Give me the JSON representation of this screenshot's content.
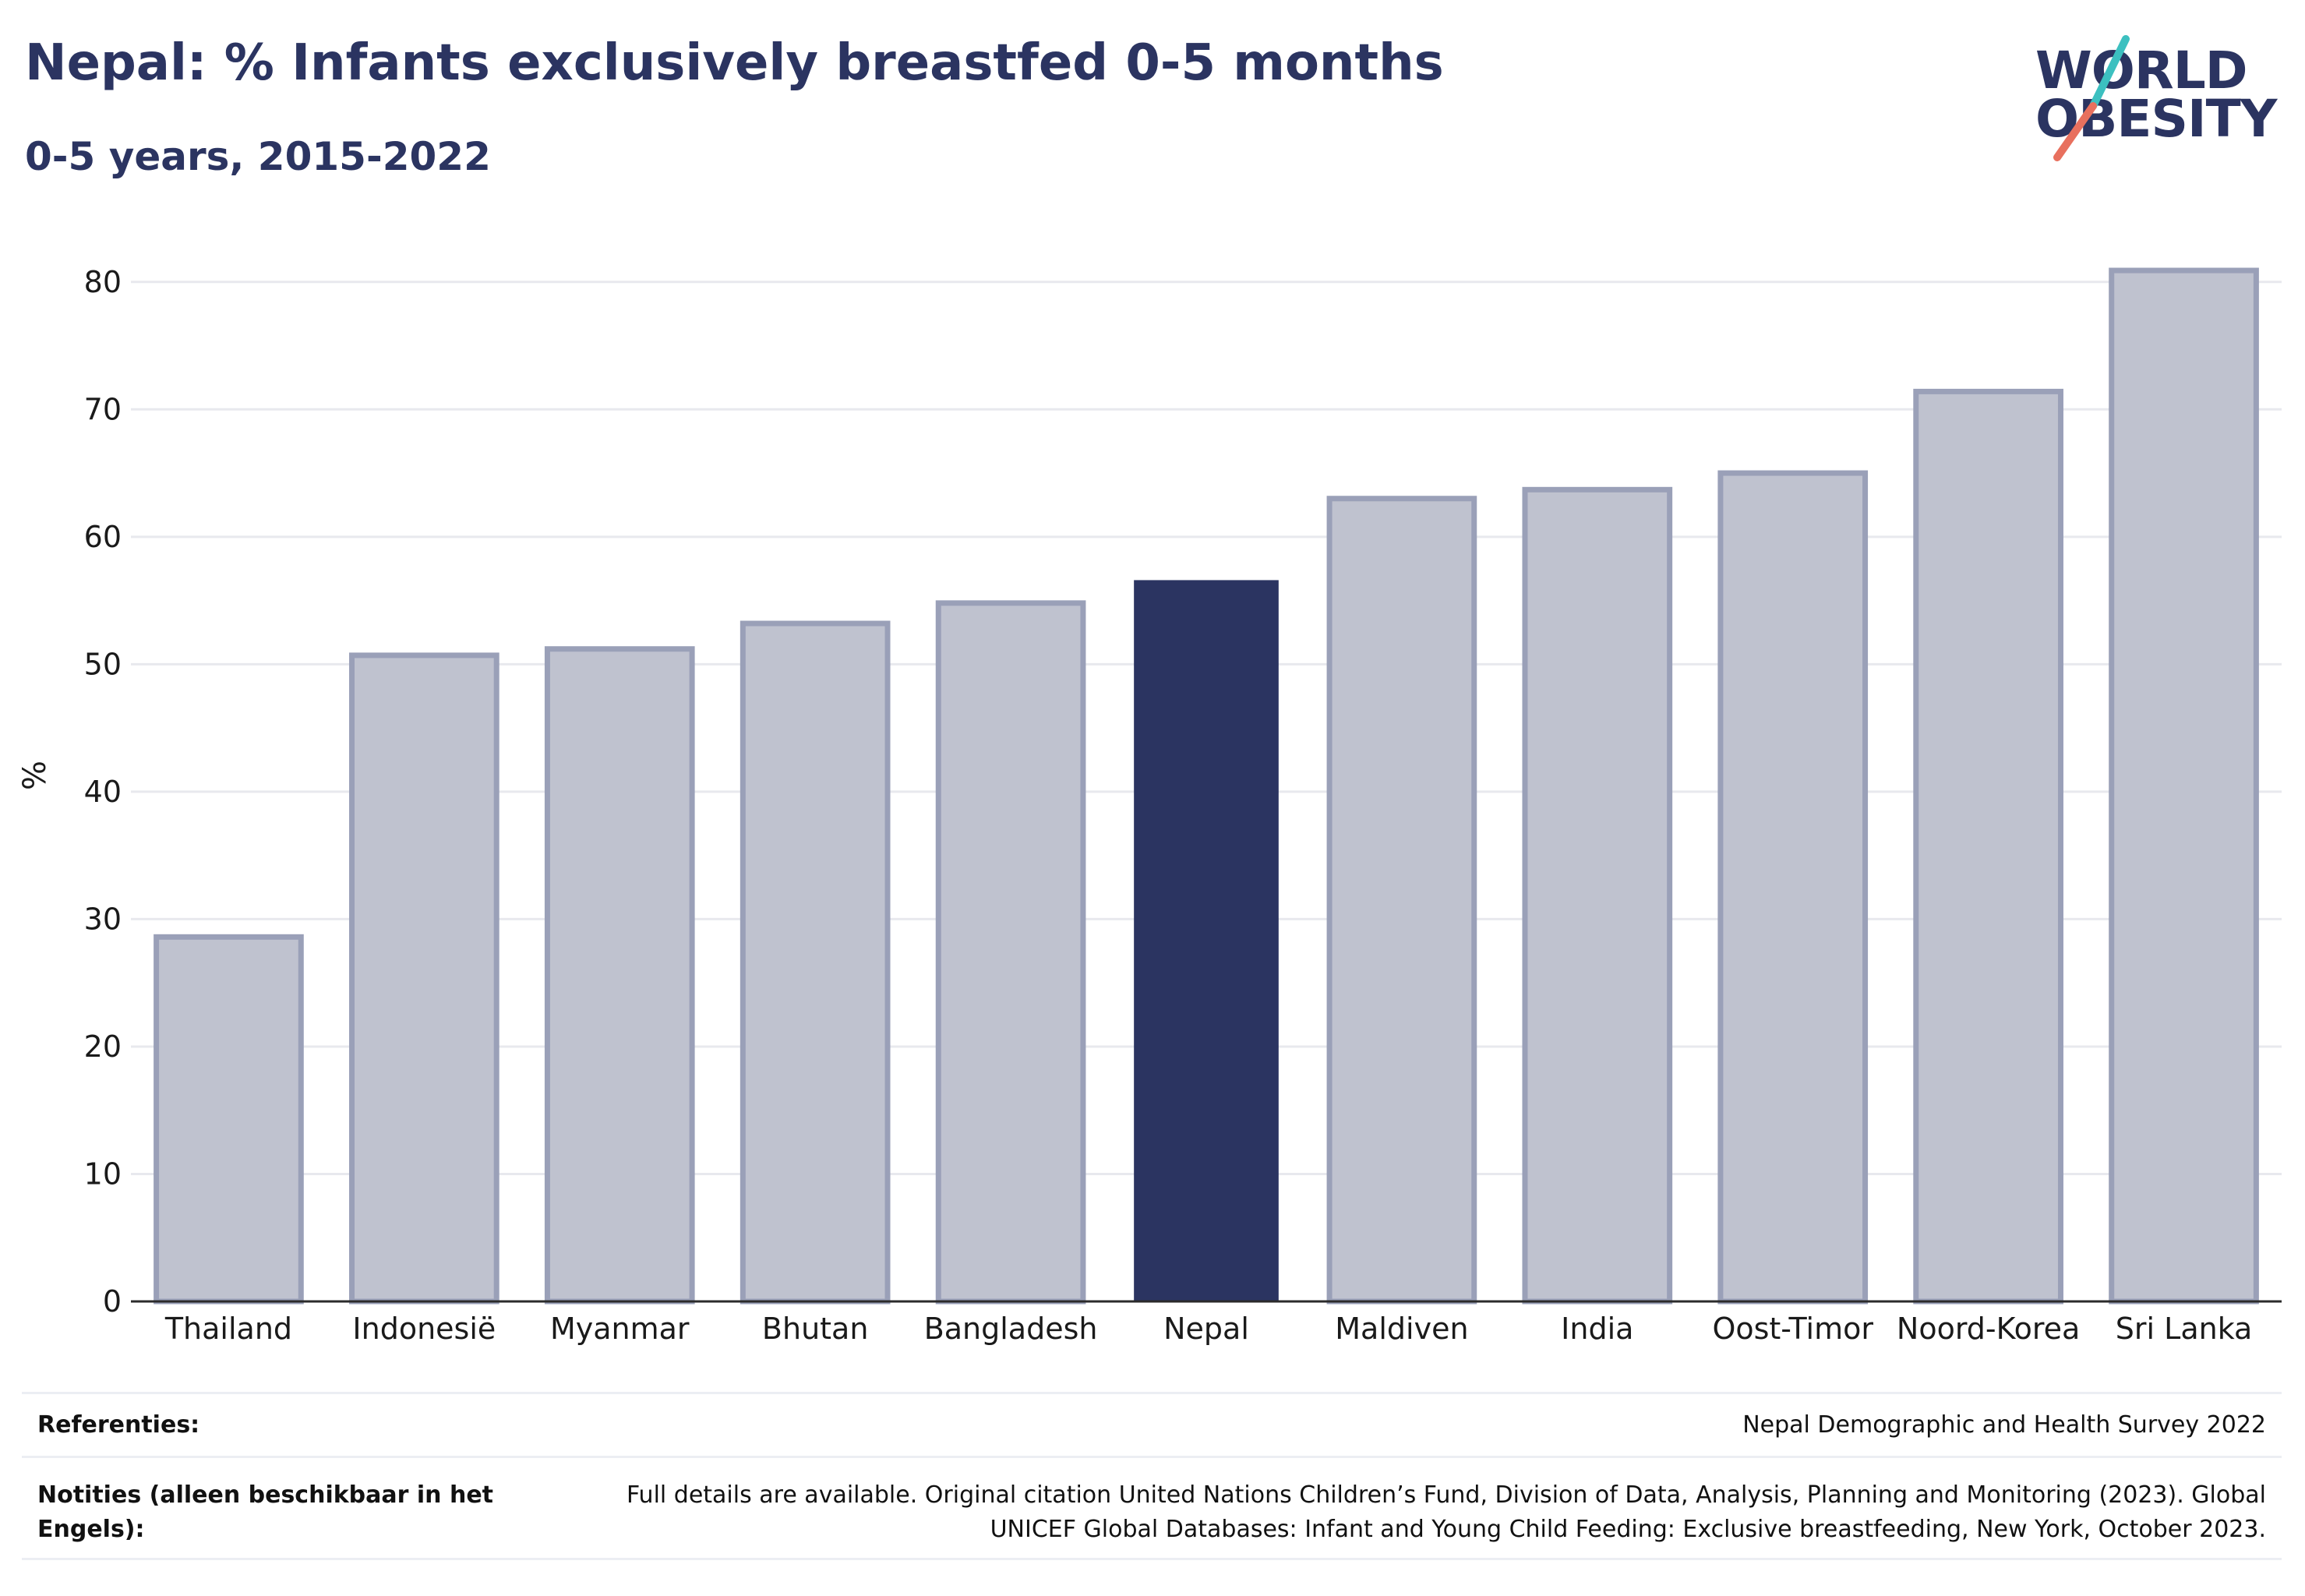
{
  "header": {
    "title": "Nepal: % Infants exclusively breastfed 0-5 months",
    "subtitle": "0-5 years, 2015-2022"
  },
  "logo": {
    "line1": "WORLD",
    "line2": "OBESITY",
    "colors": {
      "text": "#2b3461",
      "slash_top": "#3cc0c0",
      "slash_bottom": "#e8705e"
    }
  },
  "chart_data": {
    "type": "bar",
    "categories": [
      "Thailand",
      "Indonesië",
      "Myanmar",
      "Bhutan",
      "Bangladesh",
      "Nepal",
      "Maldiven",
      "India",
      "Oost-Timor",
      "Noord-Korea",
      "Sri Lanka"
    ],
    "values": [
      28.6,
      50.7,
      51.2,
      53.2,
      54.8,
      56.6,
      63.0,
      63.7,
      65.0,
      71.4,
      80.9
    ],
    "highlight": "Nepal",
    "ylabel": "%",
    "ylim": [
      0,
      85
    ],
    "yticks": [
      0,
      10,
      20,
      30,
      40,
      50,
      60,
      70,
      80
    ],
    "grid": true,
    "colors": {
      "highlight": "#2b3461",
      "other_fill": "#bfc2cf",
      "other_stroke": "#9aa0b8"
    }
  },
  "footer": {
    "references_label": "Referenties:",
    "references_value": "Nepal Demographic and Health Survey 2022",
    "notes_label": "Notities (alleen beschikbaar in het Engels):",
    "notes_value": "Full details are available. Original citation United Nations Children’s Fund, Division of Data, Analysis, Planning and Monitoring (2023). Global UNICEF Global Databases: Infant and Young Child Feeding: Exclusive breastfeeding, New York, October 2023."
  }
}
